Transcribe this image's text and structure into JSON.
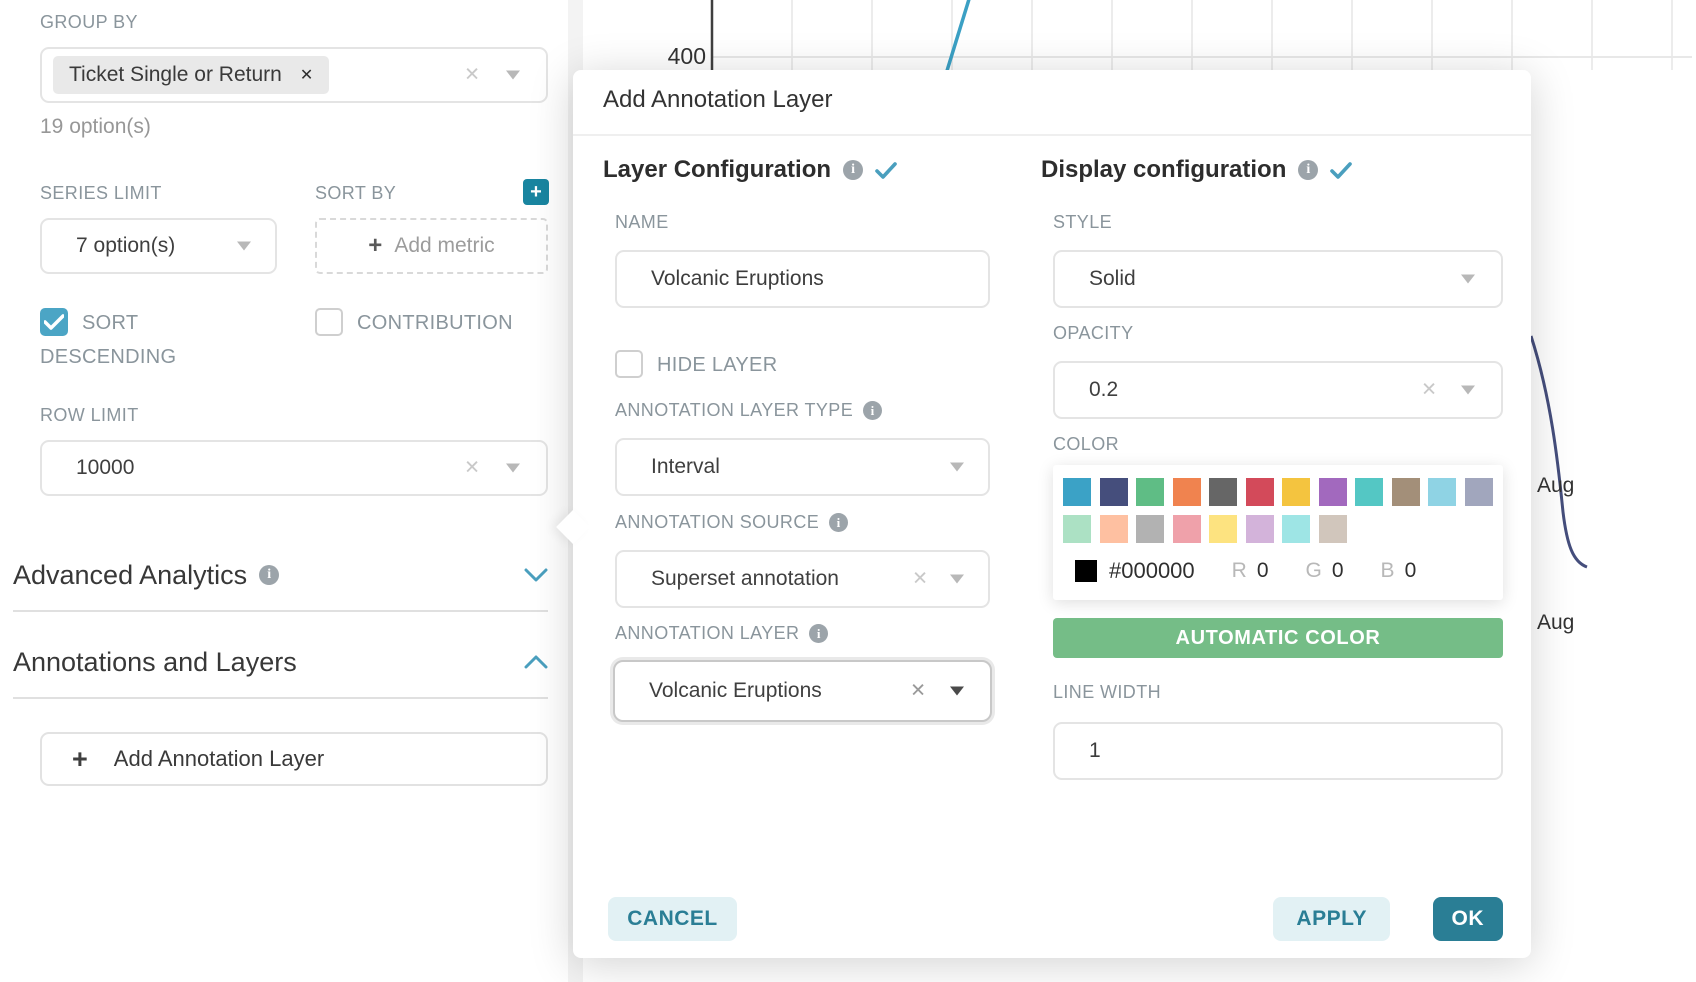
{
  "left_panel": {
    "group_by": {
      "label": "GROUP BY",
      "selected_tag": "Ticket Single or Return",
      "options_hint": "19 option(s)"
    },
    "series_limit": {
      "label": "SERIES LIMIT",
      "value": "7 option(s)"
    },
    "sort_by": {
      "label": "SORT BY",
      "add_metric_placeholder": "Add metric"
    },
    "checkboxes": {
      "sort_descending": {
        "label": "SORT DESCENDING",
        "checked": true
      },
      "contribution": {
        "label": "CONTRIBUTION",
        "checked": false
      }
    },
    "row_limit": {
      "label": "ROW LIMIT",
      "value": "10000"
    },
    "sections": [
      {
        "label": "Advanced Analytics",
        "state": "collapsed"
      },
      {
        "label": "Annotations and Layers",
        "state": "expanded"
      }
    ],
    "add_annotation_layer_button": "Add Annotation Layer"
  },
  "modal": {
    "title": "Add Annotation Layer",
    "layer_configuration": {
      "heading": "Layer Configuration",
      "name_label": "NAME",
      "name_value": "Volcanic Eruptions",
      "hide_layer_label": "HIDE LAYER",
      "hide_layer_checked": false,
      "type_label": "ANNOTATION LAYER TYPE",
      "type_value": "Interval",
      "source_label": "ANNOTATION SOURCE",
      "source_value": "Superset annotation",
      "layer_label": "ANNOTATION LAYER",
      "layer_value": "Volcanic Eruptions"
    },
    "display_configuration": {
      "heading": "Display configuration",
      "style_label": "STYLE",
      "style_value": "Solid",
      "opacity_label": "OPACITY",
      "opacity_value": "0.2",
      "color_label": "COLOR",
      "color_picker": {
        "row1": [
          "#3BA2C6",
          "#454E7C",
          "#5FBD85",
          "#F0834F",
          "#666666",
          "#D34A5A",
          "#F4C43F",
          "#A269BE",
          "#54C7C4",
          "#A38F79",
          "#8FD3E4",
          "#A1A6BD"
        ],
        "row2": [
          "#ACE1C4",
          "#FEC0A1",
          "#B2B2B2",
          "#EFA1AA",
          "#FDE380",
          "#D3B3DA",
          "#9EE5E5",
          "#D1C6BC"
        ],
        "current_hex": "#000000",
        "r_label": "R",
        "r_value": "0",
        "g_label": "G",
        "g_value": "0",
        "b_label": "B",
        "b_value": "0"
      },
      "automatic_color_button": "AUTOMATIC COLOR",
      "line_width_label": "LINE WIDTH",
      "line_width_value": "1"
    },
    "footer": {
      "cancel_label": "CANCEL",
      "apply_label": "APPLY",
      "ok_label": "OK"
    }
  },
  "background_chart": {
    "y_axis_tick": "400",
    "right_axis_labels": [
      "Aug",
      "Aug"
    ]
  },
  "colors": {
    "accent_teal": "#4A9FBE",
    "checkbox_teal": "#4BA5C5",
    "dark_teal_button": "#2A7E95",
    "light_teal_bg": "#E2F1F4",
    "green_button": "#75BD87",
    "navy_line": "#454E7C",
    "teal_line": "#3BA0C4"
  }
}
